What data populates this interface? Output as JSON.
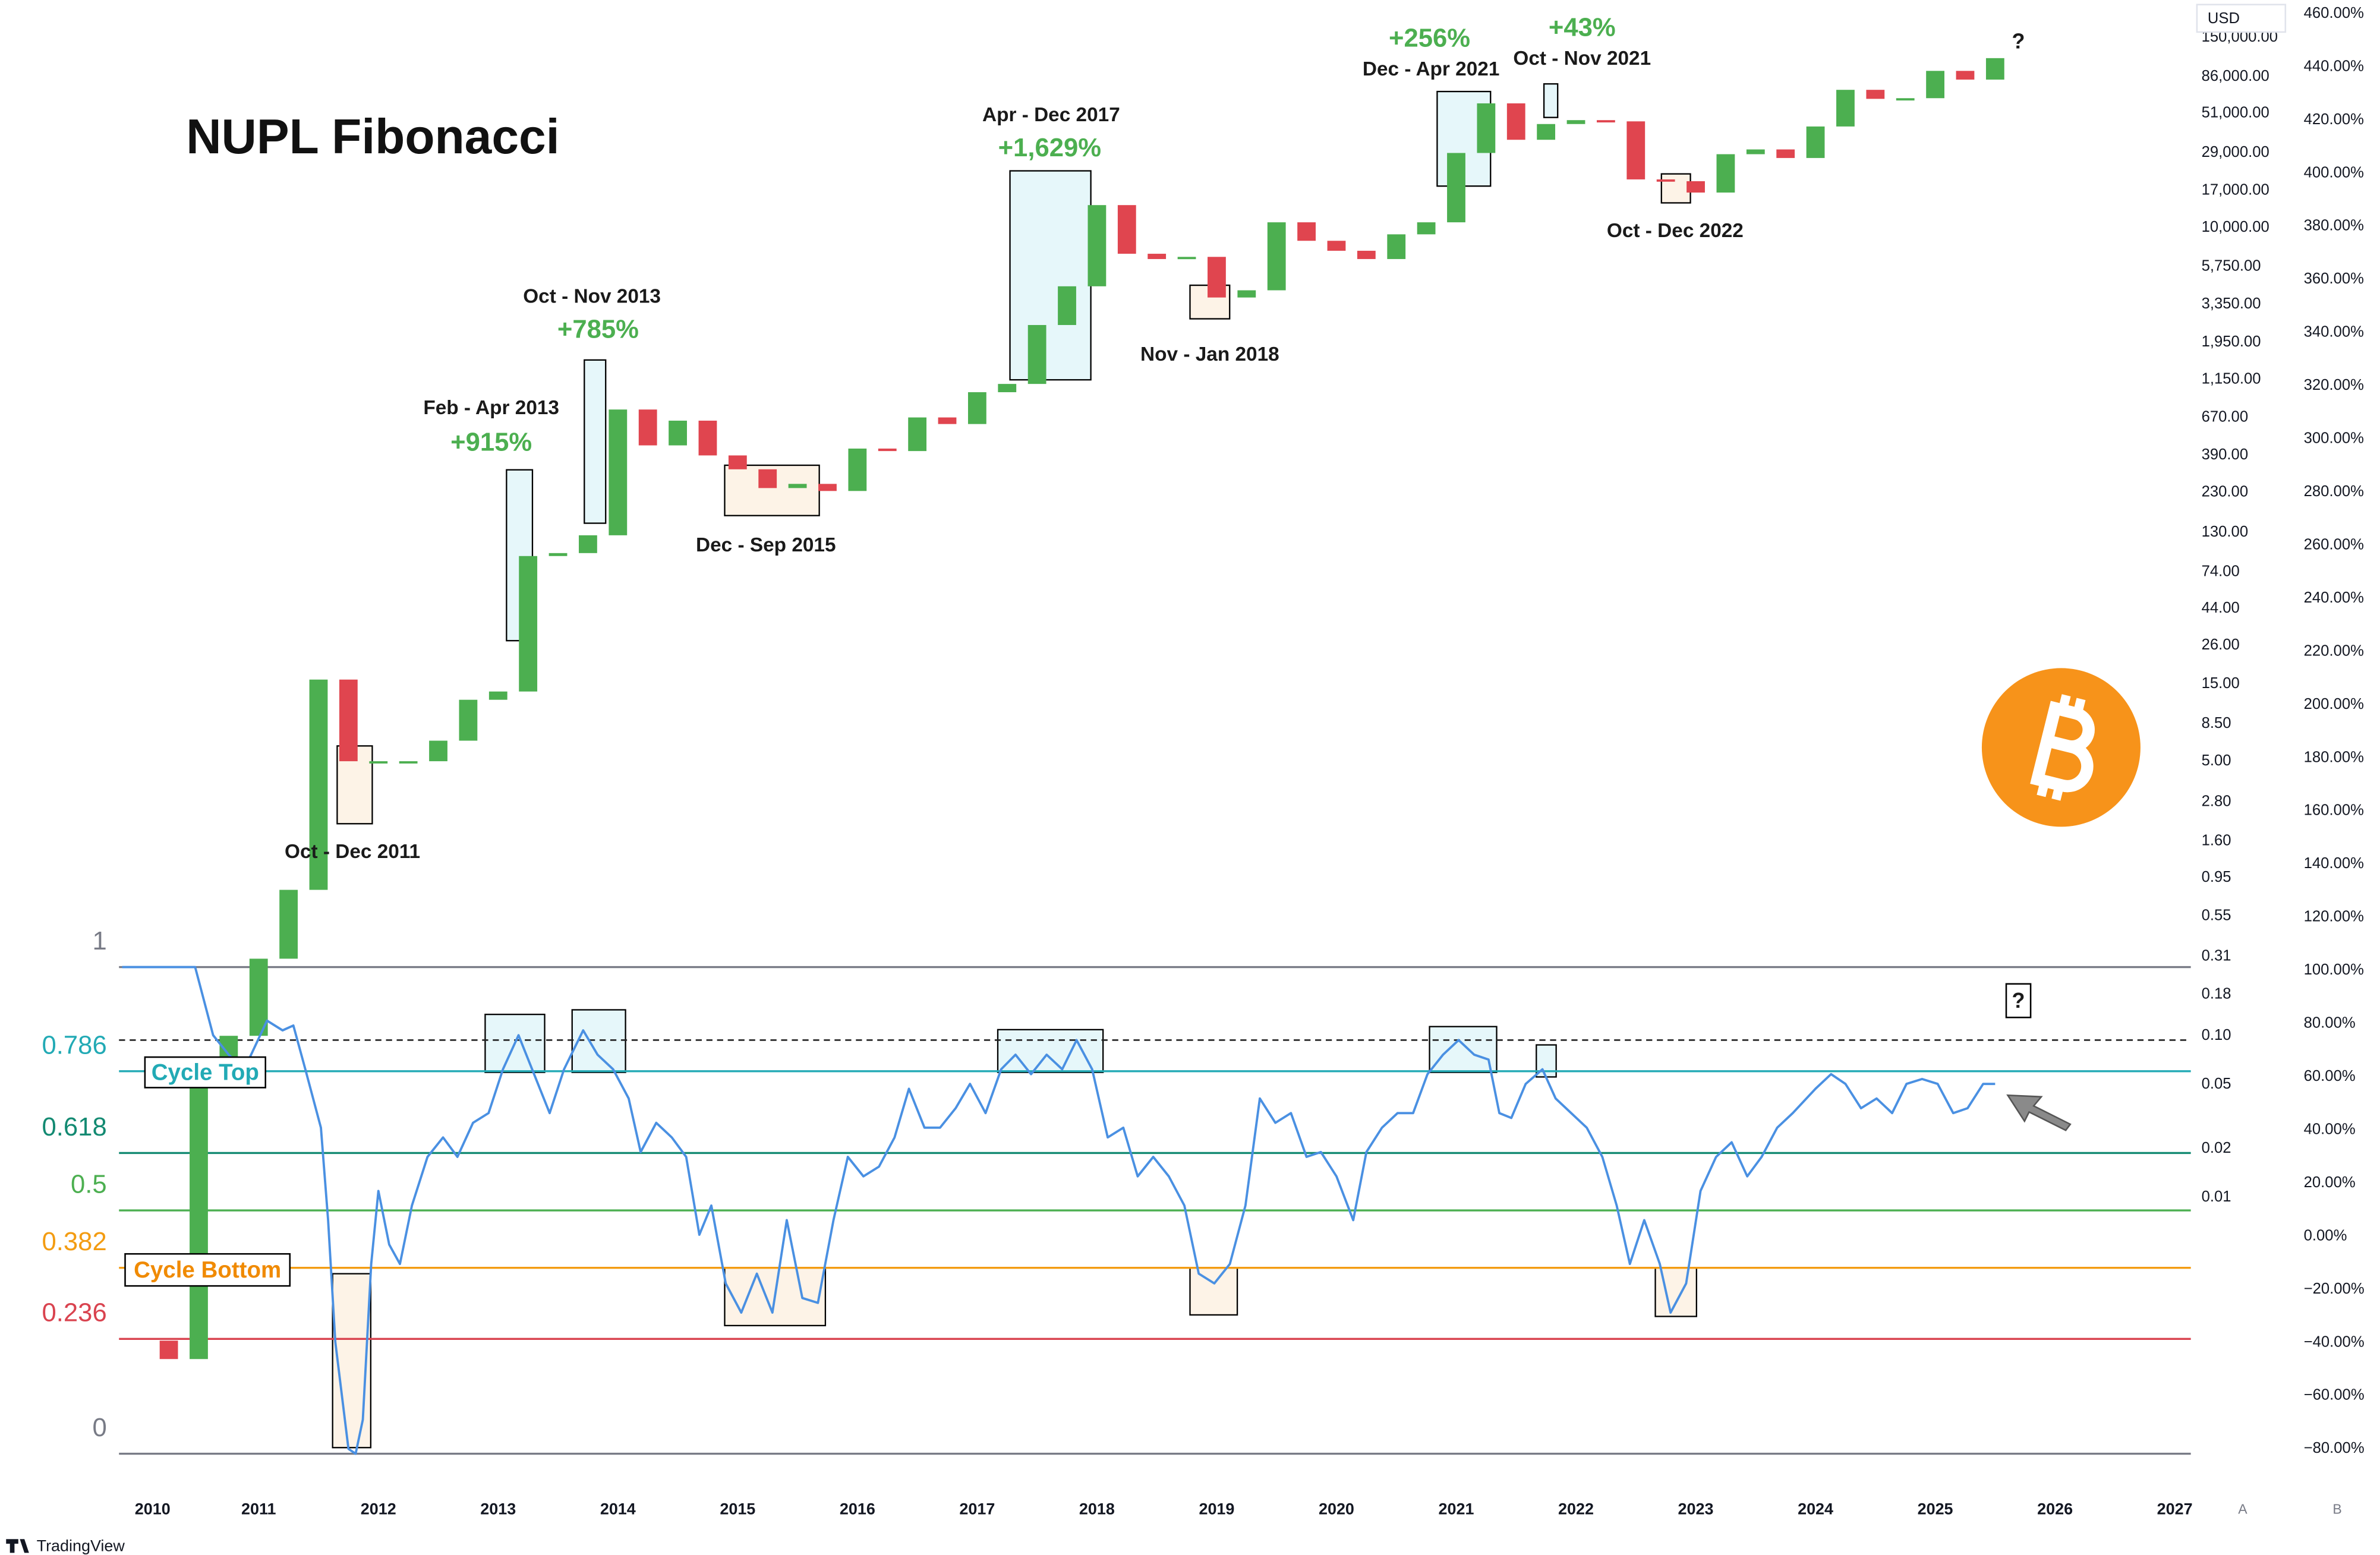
{
  "chart_data": [
    {
      "type": "candlestick",
      "title": "NUPL Fibonacci",
      "currency": "USD",
      "log": true,
      "up_color": "#4caf50",
      "down_color": "#e0454f",
      "x": [
        2010.0,
        2010.25,
        2010.5,
        2010.75,
        2011.0,
        2011.25,
        2011.5,
        2011.75,
        2012.0,
        2012.25,
        2012.5,
        2012.75,
        2013.0,
        2013.25,
        2013.5,
        2013.75,
        2014.0,
        2014.25,
        2014.5,
        2014.75,
        2015.0,
        2015.25,
        2015.5,
        2015.75,
        2016.0,
        2016.25,
        2016.5,
        2016.75,
        2017.0,
        2017.25,
        2017.5,
        2017.75,
        2018.0,
        2018.25,
        2018.5,
        2018.75,
        2019.0,
        2019.25,
        2019.5,
        2019.75,
        2020.0,
        2020.25,
        2020.5,
        2020.75,
        2021.0,
        2021.25,
        2021.5,
        2021.75,
        2022.0,
        2022.25,
        2022.5,
        2022.75,
        2023.0,
        2023.25,
        2023.5,
        2023.75,
        2024.0,
        2024.25,
        2024.5,
        2024.75,
        2025.0,
        2025.25,
        2025.5
      ],
      "values": [
        0.0013,
        0.001,
        0.05,
        0.1,
        0.3,
        0.8,
        16,
        5,
        5,
        5,
        6.7,
        12,
        13.5,
        93,
        97,
        125,
        750,
        450,
        640,
        390,
        320,
        245,
        260,
        235,
        430,
        415,
        670,
        610,
        960,
        1080,
        2500,
        4340,
        13800,
        6900,
        6400,
        6600,
        3700,
        4100,
        10800,
        8300,
        7200,
        6400,
        9100,
        10800,
        29000,
        58800,
        35000,
        43800,
        46300,
        45500,
        19900,
        19400,
        16500,
        28500,
        30500,
        27000,
        42300,
        71300,
        62700,
        63300,
        93400,
        82500,
        112000
      ],
      "xlim": [
        2009.834,
        2027.134
      ],
      "xticks": [
        2010,
        2011,
        2012,
        2013,
        2014,
        2015,
        2016,
        2017,
        2018,
        2019,
        2020,
        2021,
        2022,
        2023,
        2024,
        2025,
        2026,
        2027
      ],
      "ylim": [
        0.0002,
        230000
      ],
      "yticks": [
        {
          "value": 150000,
          "label": "150,000.00"
        },
        {
          "value": 86000,
          "label": "86,000.00"
        },
        {
          "value": 51000,
          "label": "51,000.00"
        },
        {
          "value": 29000,
          "label": "29,000.00"
        },
        {
          "value": 17000,
          "label": "17,000.00"
        },
        {
          "value": 10000,
          "label": "10,000.00"
        },
        {
          "value": 5750,
          "label": "5,750.00"
        },
        {
          "value": 3350,
          "label": "3,350.00"
        },
        {
          "value": 1950,
          "label": "1,950.00"
        },
        {
          "value": 1150,
          "label": "1,150.00"
        },
        {
          "value": 670,
          "label": "670.00"
        },
        {
          "value": 390,
          "label": "390.00"
        },
        {
          "value": 230,
          "label": "230.00"
        },
        {
          "value": 130,
          "label": "130.00"
        },
        {
          "value": 74,
          "label": "74.00"
        },
        {
          "value": 44,
          "label": "44.00"
        },
        {
          "value": 26,
          "label": "26.00"
        },
        {
          "value": 15,
          "label": "15.00"
        },
        {
          "value": 8.5,
          "label": "8.50"
        },
        {
          "value": 5,
          "label": "5.00"
        },
        {
          "value": 2.8,
          "label": "2.80"
        },
        {
          "value": 1.6,
          "label": "1.60"
        },
        {
          "value": 0.95,
          "label": "0.95"
        },
        {
          "value": 0.55,
          "label": "0.55"
        },
        {
          "value": 0.31,
          "label": "0.31"
        },
        {
          "value": 0.18,
          "label": "0.18"
        },
        {
          "value": 0.1,
          "label": "0.10"
        },
        {
          "value": 0.05,
          "label": "0.05"
        },
        {
          "value": 0.02,
          "label": "0.02"
        },
        {
          "value": 0.01,
          "label": "0.01"
        }
      ],
      "annotations": [
        {
          "text": "Feb - Apr 2013",
          "color": "#1a1a1a"
        },
        {
          "text": "+915%",
          "color": "#4caf50"
        },
        {
          "text": "Oct - Nov 2013",
          "color": "#1a1a1a"
        },
        {
          "text": "+785%",
          "color": "#4caf50"
        },
        {
          "text": "Oct - Dec 2011",
          "color": "#1a1a1a"
        },
        {
          "text": "Dec - Sep 2015",
          "color": "#1a1a1a"
        },
        {
          "text": "Apr - Dec 2017",
          "color": "#1a1a1a"
        },
        {
          "text": "+1,629%",
          "color": "#4caf50"
        },
        {
          "text": "Nov - Jan 2018",
          "color": "#1a1a1a"
        },
        {
          "text": "Dec - Apr 2021",
          "color": "#1a1a1a"
        },
        {
          "text": "+256%",
          "color": "#4caf50"
        },
        {
          "text": "Oct - Nov 2021",
          "color": "#1a1a1a"
        },
        {
          "text": "+43%",
          "color": "#4caf50"
        },
        {
          "text": "Oct - Dec 2022",
          "color": "#1a1a1a"
        },
        {
          "text": "?",
          "color": "#1a1a1a"
        }
      ]
    },
    {
      "type": "line",
      "color": "#4a90e2",
      "x": [
        2009.86,
        2010.47,
        2010.62,
        2010.75,
        2010.88,
        2011.07,
        2011.2,
        2011.29,
        2011.39,
        2011.52,
        2011.58,
        2011.64,
        2011.75,
        2011.81,
        2011.87,
        2011.94,
        2012.0,
        2012.09,
        2012.18,
        2012.28,
        2012.41,
        2012.54,
        2012.66,
        2012.79,
        2012.92,
        2013.04,
        2013.17,
        2013.3,
        2013.43,
        2013.55,
        2013.71,
        2013.83,
        2013.96,
        2014.09,
        2014.19,
        2014.32,
        2014.45,
        2014.57,
        2014.68,
        2014.78,
        2014.9,
        2015.03,
        2015.16,
        2015.29,
        2015.41,
        2015.54,
        2015.67,
        2015.8,
        2015.92,
        2016.05,
        2016.18,
        2016.31,
        2016.43,
        2016.56,
        2016.69,
        2016.82,
        2016.94,
        2017.07,
        2017.2,
        2017.32,
        2017.45,
        2017.58,
        2017.71,
        2017.83,
        2017.96,
        2018.09,
        2018.22,
        2018.34,
        2018.47,
        2018.6,
        2018.73,
        2018.85,
        2018.98,
        2019.11,
        2019.24,
        2019.36,
        2019.49,
        2019.62,
        2019.75,
        2019.87,
        2020.0,
        2020.14,
        2020.25,
        2020.38,
        2020.51,
        2020.64,
        2020.76,
        2020.89,
        2021.02,
        2021.15,
        2021.27,
        2021.36,
        2021.46,
        2021.58,
        2021.72,
        2021.83,
        2021.96,
        2022.09,
        2022.22,
        2022.34,
        2022.45,
        2022.57,
        2022.7,
        2022.79,
        2022.92,
        2023.04,
        2023.17,
        2023.3,
        2023.43,
        2023.55,
        2023.68,
        2023.81,
        2024.0,
        2024.13,
        2024.25,
        2024.38,
        2024.51,
        2024.64,
        2024.76,
        2024.89,
        2025.02,
        2025.15,
        2025.27,
        2025.4,
        2025.5
      ],
      "values": [
        1.0,
        1.0,
        0.86,
        0.82,
        0.79,
        0.89,
        0.87,
        0.88,
        0.79,
        0.67,
        0.48,
        0.23,
        0.01,
        0.0,
        0.07,
        0.39,
        0.54,
        0.43,
        0.39,
        0.51,
        0.61,
        0.65,
        0.61,
        0.68,
        0.7,
        0.79,
        0.86,
        0.78,
        0.7,
        0.79,
        0.87,
        0.82,
        0.79,
        0.73,
        0.62,
        0.68,
        0.65,
        0.61,
        0.45,
        0.51,
        0.35,
        0.29,
        0.37,
        0.29,
        0.48,
        0.32,
        0.31,
        0.48,
        0.61,
        0.57,
        0.59,
        0.65,
        0.75,
        0.67,
        0.67,
        0.71,
        0.76,
        0.7,
        0.79,
        0.82,
        0.78,
        0.82,
        0.79,
        0.85,
        0.79,
        0.65,
        0.67,
        0.57,
        0.61,
        0.57,
        0.51,
        0.37,
        0.35,
        0.39,
        0.51,
        0.73,
        0.68,
        0.7,
        0.61,
        0.62,
        0.57,
        0.48,
        0.62,
        0.67,
        0.7,
        0.7,
        0.78,
        0.82,
        0.85,
        0.82,
        0.81,
        0.7,
        0.69,
        0.76,
        0.79,
        0.73,
        0.7,
        0.67,
        0.61,
        0.51,
        0.39,
        0.48,
        0.39,
        0.29,
        0.35,
        0.54,
        0.61,
        0.64,
        0.57,
        0.61,
        0.67,
        0.7,
        0.75,
        0.78,
        0.76,
        0.71,
        0.73,
        0.7,
        0.76,
        0.77,
        0.76,
        0.7,
        0.71,
        0.76,
        0.76
      ],
      "ylim": [
        0,
        1
      ],
      "levels": [
        {
          "value": 1,
          "color": "#787b86"
        },
        {
          "value": 0.786,
          "color": "#22aab5"
        },
        {
          "value": 0.618,
          "color": "#138a72"
        },
        {
          "value": 0.5,
          "color": "#4caf50"
        },
        {
          "value": 0.382,
          "color": "#f39c12"
        },
        {
          "value": 0.236,
          "color": "#d9434f"
        },
        {
          "value": 0,
          "color": "#787b86"
        }
      ],
      "dashed_level": 0.85,
      "zone_labels": [
        {
          "text": "Cycle Top",
          "color": "#22aab5"
        },
        {
          "text": "Cycle Bottom",
          "color": "#f08a00"
        }
      ],
      "annotations": [
        {
          "text": "?",
          "color": "#1a1a1a"
        }
      ],
      "y2lim": [
        -88.7,
        462.3
      ],
      "y2ticks": [
        {
          "value": 460,
          "label": "460.00%"
        },
        {
          "value": 440,
          "label": "440.00%"
        },
        {
          "value": 420,
          "label": "420.00%"
        },
        {
          "value": 400,
          "label": "400.00%"
        },
        {
          "value": 380,
          "label": "380.00%"
        },
        {
          "value": 360,
          "label": "360.00%"
        },
        {
          "value": 340,
          "label": "340.00%"
        },
        {
          "value": 320,
          "label": "320.00%"
        },
        {
          "value": 300,
          "label": "300.00%"
        },
        {
          "value": 280,
          "label": "280.00%"
        },
        {
          "value": 260,
          "label": "260.00%"
        },
        {
          "value": 240,
          "label": "240.00%"
        },
        {
          "value": 220,
          "label": "220.00%"
        },
        {
          "value": 200,
          "label": "200.00%"
        },
        {
          "value": 180,
          "label": "180.00%"
        },
        {
          "value": 160,
          "label": "160.00%"
        },
        {
          "value": 140,
          "label": "140.00%"
        },
        {
          "value": 120,
          "label": "120.00%"
        },
        {
          "value": 100,
          "label": "100.00%"
        },
        {
          "value": 80,
          "label": "80.00%"
        },
        {
          "value": 60,
          "label": "60.00%"
        },
        {
          "value": 40,
          "label": "40.00%"
        },
        {
          "value": 20,
          "label": "20.00%"
        },
        {
          "value": 0,
          "label": "0.00%"
        },
        {
          "value": -20,
          "label": "−20.00%"
        },
        {
          "value": -40,
          "label": "−40.00%"
        },
        {
          "value": -60,
          "label": "−60.00%"
        },
        {
          "value": -80,
          "label": "−80.00%"
        }
      ]
    }
  ],
  "footer": {
    "brand": "TradingView",
    "buttons": [
      "A",
      "B"
    ]
  }
}
